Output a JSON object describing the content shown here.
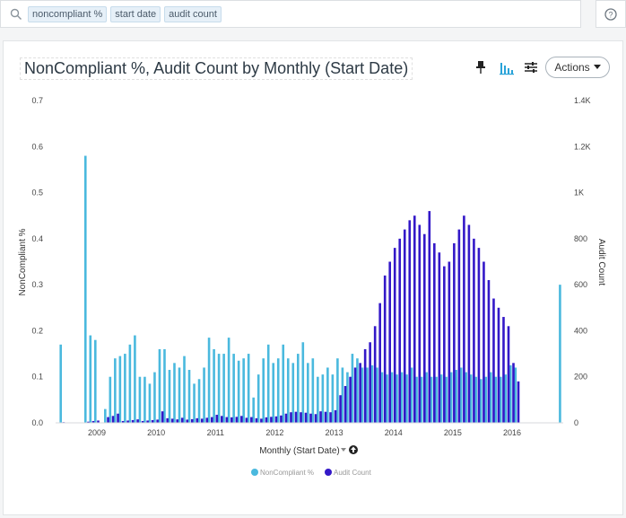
{
  "search": {
    "tokens": [
      "noncompliant %",
      "start date",
      "audit count"
    ]
  },
  "toolbar": {
    "actions_label": "Actions"
  },
  "colors": {
    "noncompliant": "#4ab9de",
    "audit": "#3318c8",
    "accent": "#29a3d8"
  },
  "chart_data": {
    "type": "bar",
    "title": "NonCompliant %, Audit Count by Monthly (Start Date)",
    "xlabel": "Monthly (Start Date)",
    "y_left": {
      "label": "NonCompliant %",
      "ylim": [
        0,
        0.7
      ],
      "ticks": [
        "0.0",
        "0.1",
        "0.2",
        "0.3",
        "0.4",
        "0.5",
        "0.6",
        "0.7"
      ]
    },
    "y_right": {
      "label": "Audit Count",
      "ylim": [
        0,
        1400
      ],
      "ticks": [
        "0",
        "200",
        "400",
        "600",
        "800",
        "1K",
        "1.2K",
        "1.4K"
      ]
    },
    "x_ticks": [
      "2009",
      "2010",
      "2011",
      "2012",
      "2013",
      "2014",
      "2015",
      "2016"
    ],
    "grid": false,
    "legend_position": "bottom",
    "series": [
      {
        "name": "NonCompliant %",
        "x": [
          "2008-06",
          "2008-11",
          "2008-12",
          "2009-01",
          "2009-03",
          "2009-04",
          "2009-05",
          "2009-06",
          "2009-07",
          "2009-08",
          "2009-09",
          "2009-10",
          "2009-11",
          "2009-12",
          "2010-01",
          "2010-02",
          "2010-03",
          "2010-04",
          "2010-05",
          "2010-06",
          "2010-07",
          "2010-08",
          "2010-09",
          "2010-10",
          "2010-11",
          "2010-12",
          "2011-01",
          "2011-02",
          "2011-03",
          "2011-04",
          "2011-05",
          "2011-06",
          "2011-07",
          "2011-08",
          "2011-09",
          "2011-10",
          "2011-11",
          "2011-12",
          "2012-01",
          "2012-02",
          "2012-03",
          "2012-04",
          "2012-05",
          "2012-06",
          "2012-07",
          "2012-08",
          "2012-09",
          "2012-10",
          "2012-11",
          "2012-12",
          "2013-01",
          "2013-02",
          "2013-03",
          "2013-04",
          "2013-05",
          "2013-06",
          "2013-07",
          "2013-08",
          "2013-09",
          "2013-10",
          "2013-11",
          "2013-12",
          "2014-01",
          "2014-02",
          "2014-03",
          "2014-04",
          "2014-05",
          "2014-06",
          "2014-07",
          "2014-08",
          "2014-09",
          "2014-10",
          "2014-11",
          "2014-12",
          "2015-01",
          "2015-02",
          "2015-03",
          "2015-04",
          "2015-05",
          "2015-06",
          "2015-07",
          "2015-08",
          "2015-09",
          "2015-10",
          "2015-11",
          "2015-12",
          "2016-01",
          "2016-02",
          "2016-11"
        ],
        "values": [
          0.17,
          0.58,
          0.19,
          0.18,
          0.03,
          0.1,
          0.14,
          0.145,
          0.15,
          0.17,
          0.19,
          0.1,
          0.1,
          0.085,
          0.11,
          0.16,
          0.16,
          0.115,
          0.13,
          0.12,
          0.145,
          0.115,
          0.085,
          0.095,
          0.12,
          0.185,
          0.16,
          0.15,
          0.15,
          0.185,
          0.15,
          0.135,
          0.14,
          0.15,
          0.055,
          0.105,
          0.14,
          0.17,
          0.13,
          0.14,
          0.17,
          0.14,
          0.13,
          0.15,
          0.175,
          0.13,
          0.14,
          0.1,
          0.105,
          0.12,
          0.105,
          0.14,
          0.12,
          0.11,
          0.15,
          0.14,
          0.12,
          0.12,
          0.125,
          0.12,
          0.11,
          0.105,
          0.11,
          0.105,
          0.11,
          0.105,
          0.12,
          0.1,
          0.1,
          0.11,
          0.1,
          0.1,
          0.105,
          0.1,
          0.11,
          0.115,
          0.12,
          0.11,
          0.105,
          0.1,
          0.095,
          0.1,
          0.11,
          0.1,
          0.1,
          0.105,
          0.125,
          0.12,
          0.3
        ]
      },
      {
        "name": "Audit Count",
        "x": [
          "2008-06",
          "2008-11",
          "2008-12",
          "2009-01",
          "2009-03",
          "2009-04",
          "2009-05",
          "2009-06",
          "2009-07",
          "2009-08",
          "2009-09",
          "2009-10",
          "2009-11",
          "2009-12",
          "2010-01",
          "2010-02",
          "2010-03",
          "2010-04",
          "2010-05",
          "2010-06",
          "2010-07",
          "2010-08",
          "2010-09",
          "2010-10",
          "2010-11",
          "2010-12",
          "2011-01",
          "2011-02",
          "2011-03",
          "2011-04",
          "2011-05",
          "2011-06",
          "2011-07",
          "2011-08",
          "2011-09",
          "2011-10",
          "2011-11",
          "2011-12",
          "2012-01",
          "2012-02",
          "2012-03",
          "2012-04",
          "2012-05",
          "2012-06",
          "2012-07",
          "2012-08",
          "2012-09",
          "2012-10",
          "2012-11",
          "2012-12",
          "2013-01",
          "2013-02",
          "2013-03",
          "2013-04",
          "2013-05",
          "2013-06",
          "2013-07",
          "2013-08",
          "2013-09",
          "2013-10",
          "2013-11",
          "2013-12",
          "2014-01",
          "2014-02",
          "2014-03",
          "2014-04",
          "2014-05",
          "2014-06",
          "2014-07",
          "2014-08",
          "2014-09",
          "2014-10",
          "2014-11",
          "2014-12",
          "2015-01",
          "2015-02",
          "2015-03",
          "2015-04",
          "2015-05",
          "2015-06",
          "2015-07",
          "2015-08",
          "2015-09",
          "2015-10",
          "2015-11",
          "2015-12",
          "2016-01",
          "2016-02",
          "2016-11"
        ],
        "values": [
          3,
          5,
          8,
          10,
          25,
          30,
          40,
          8,
          10,
          12,
          15,
          8,
          10,
          12,
          14,
          50,
          20,
          18,
          15,
          22,
          14,
          16,
          20,
          18,
          22,
          25,
          35,
          30,
          25,
          24,
          26,
          30,
          22,
          25,
          20,
          18,
          24,
          26,
          28,
          32,
          40,
          46,
          48,
          46,
          44,
          40,
          38,
          50,
          48,
          46,
          55,
          120,
          160,
          200,
          240,
          260,
          320,
          350,
          420,
          520,
          640,
          700,
          760,
          800,
          840,
          880,
          900,
          860,
          820,
          920,
          780,
          740,
          680,
          700,
          780,
          840,
          900,
          860,
          800,
          760,
          700,
          620,
          540,
          500,
          460,
          420,
          260,
          180,
          0
        ]
      }
    ]
  }
}
